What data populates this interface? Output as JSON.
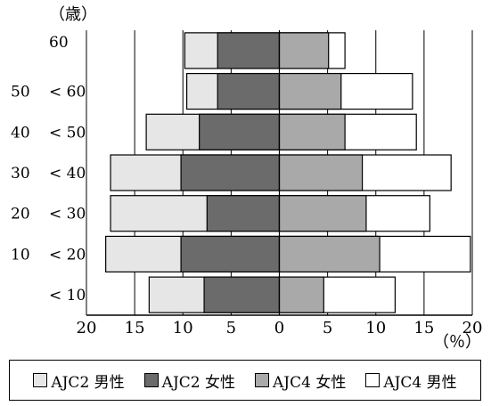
{
  "chart_data": {
    "type": "bar",
    "orientation": "horizontal",
    "layout": "population-pyramid",
    "y_unit_label": "（歳）",
    "x_unit_label": "（％）",
    "categories": [
      {
        "line1": "",
        "line2": "< 10"
      },
      {
        "line1": "10",
        "line2": "< 20"
      },
      {
        "line1": "20",
        "line2": "< 30"
      },
      {
        "line1": "30",
        "line2": "< 40"
      },
      {
        "line1": "40",
        "line2": "< 50"
      },
      {
        "line1": "50",
        "line2": "< 60"
      },
      {
        "line1": "",
        "line2": "60"
      }
    ],
    "xlim": [
      -20,
      20
    ],
    "x_ticks": [
      -20,
      -15,
      -10,
      -5,
      0,
      5,
      10,
      15,
      20
    ],
    "x_tick_labels": [
      "20",
      "15",
      "10",
      "5",
      "0",
      "5",
      "10",
      "15",
      "20"
    ],
    "grid": true,
    "series": [
      {
        "name": "AJC2 男性",
        "side": "left",
        "color": "#e6e6e6",
        "values": [
          13.5,
          18.0,
          17.5,
          17.5,
          13.8,
          9.6,
          9.8
        ]
      },
      {
        "name": "AJC2 女性",
        "side": "left",
        "color": "#6b6b6b",
        "values": [
          7.8,
          10.2,
          7.5,
          10.2,
          8.3,
          6.4,
          6.4
        ]
      },
      {
        "name": "AJC4 女性",
        "side": "right",
        "color": "#a9a9a9",
        "values": [
          4.6,
          10.4,
          9.0,
          8.6,
          6.8,
          6.4,
          5.1
        ]
      },
      {
        "name": "AJC4 男性",
        "side": "right",
        "color": "#ffffff",
        "values": [
          12.0,
          19.8,
          15.6,
          17.8,
          14.2,
          13.8,
          6.8
        ]
      }
    ],
    "legend": {
      "position": "bottom",
      "order": [
        "AJC2 男性",
        "AJC2 女性",
        "AJC4 女性",
        "AJC4 男性"
      ]
    }
  }
}
